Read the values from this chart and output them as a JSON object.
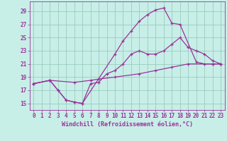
{
  "xlabel": "Windchill (Refroidissement éolien,°C)",
  "background_color": "#c8eee8",
  "grid_color": "#99ccbb",
  "line_color": "#993399",
  "xlim": [
    -0.5,
    23.5
  ],
  "ylim": [
    14,
    30.5
  ],
  "xticks": [
    0,
    1,
    2,
    3,
    4,
    5,
    6,
    7,
    8,
    9,
    10,
    11,
    12,
    13,
    14,
    15,
    16,
    17,
    18,
    19,
    20,
    21,
    22,
    23
  ],
  "yticks": [
    15,
    17,
    19,
    21,
    23,
    25,
    27,
    29
  ],
  "lines": [
    {
      "x": [
        0,
        2,
        3,
        4,
        5,
        6,
        10,
        11,
        12,
        13,
        14,
        15,
        16,
        17,
        18,
        20,
        21,
        22,
        23
      ],
      "y": [
        18.0,
        18.5,
        17.0,
        15.5,
        15.2,
        15.0,
        22.5,
        24.5,
        26.0,
        27.5,
        28.5,
        29.2,
        29.5,
        27.2,
        27.0,
        21.3,
        21.0,
        21.0,
        21.0
      ]
    },
    {
      "x": [
        0,
        2,
        3,
        4,
        5,
        6,
        7,
        8,
        9,
        10,
        11,
        12,
        13,
        14,
        15,
        16,
        17,
        18,
        19,
        20,
        21,
        22,
        23
      ],
      "y": [
        18.0,
        18.5,
        17.0,
        15.5,
        15.2,
        15.0,
        18.0,
        18.2,
        19.5,
        20.0,
        21.0,
        22.5,
        23.0,
        22.5,
        22.5,
        23.0,
        24.0,
        25.0,
        23.5,
        23.0,
        22.5,
        21.5,
        21.0
      ]
    },
    {
      "x": [
        0,
        2,
        5,
        7,
        8,
        10,
        13,
        15,
        17,
        19,
        22,
        23
      ],
      "y": [
        18.0,
        18.5,
        18.2,
        18.5,
        18.7,
        19.0,
        19.5,
        20.0,
        20.5,
        21.0,
        21.0,
        21.0
      ]
    }
  ],
  "marker": "+",
  "markersize": 3.5,
  "linewidth": 0.9,
  "tick_fontsize": 5.5,
  "label_fontsize": 6.0
}
